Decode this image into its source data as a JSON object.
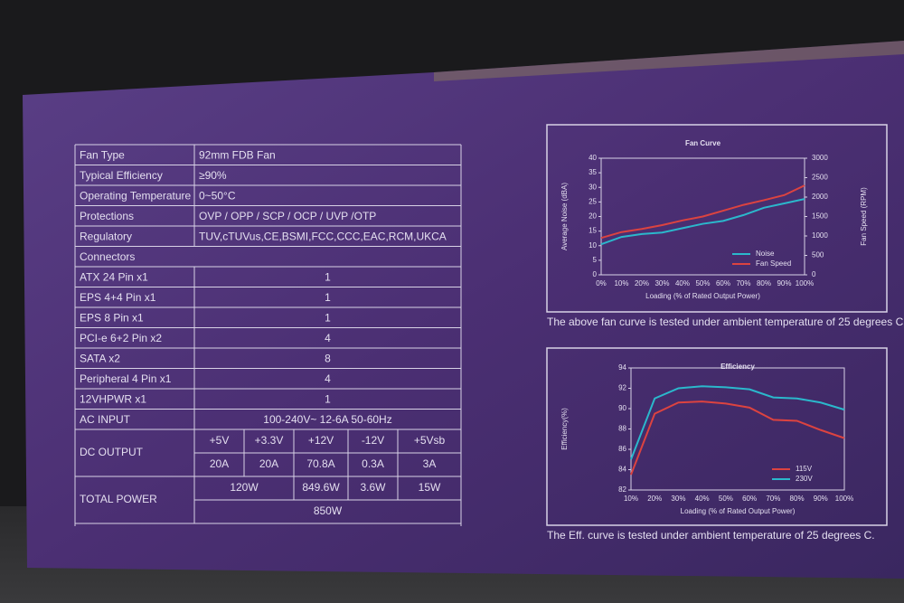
{
  "table": {
    "rows": [
      [
        "Fan Type",
        "92mm FDB Fan"
      ],
      [
        "Typical Efficiency",
        "≥90%"
      ],
      [
        "Operating Temperature",
        "0~50°C"
      ],
      [
        "Protections",
        "OVP / OPP / SCP / OCP / UVP /OTP"
      ],
      [
        "Regulatory",
        "TUV,cTUVus,CE,BSMI,FCC,CCC,EAC,RCM,UKCA"
      ],
      [
        "Connectors"
      ],
      [
        "ATX 24 Pin x1",
        "1"
      ],
      [
        "EPS 4+4 Pin x1",
        "1"
      ],
      [
        "EPS 8 Pin x1",
        "1"
      ],
      [
        "PCI-e 6+2 Pin x2",
        "4"
      ],
      [
        "SATA x2",
        "8"
      ],
      [
        "Peripheral 4 Pin x1",
        "4"
      ],
      [
        "12VHPWR x1",
        "1"
      ],
      [
        "AC INPUT",
        "100-240V~ 12-6A 50-60Hz"
      ]
    ],
    "dc_output": {
      "label": "DC OUTPUT",
      "rails": [
        "+5V",
        "+3.3V",
        "+12V",
        "-12V",
        "+5Vsb"
      ],
      "currents": [
        "20A",
        "20A",
        "70.8A",
        "0.3A",
        "3A"
      ]
    },
    "total_power": {
      "label": "TOTAL POWER",
      "values": [
        "120W",
        "849.6W",
        "3.6W",
        "15W"
      ],
      "total": "850W"
    }
  },
  "chart_data": [
    {
      "type": "line",
      "title": "Fan Curve",
      "x_label": "Loading (% of Rated Output Power)",
      "y_label": "Average Noise (dBA)",
      "y2_label": "Fan Speed (RPM)",
      "categories": [
        "0%",
        "10%",
        "20%",
        "30%",
        "40%",
        "50%",
        "60%",
        "70%",
        "80%",
        "90%",
        "100%"
      ],
      "ylim": [
        0,
        40
      ],
      "yticks": [
        0,
        5,
        10,
        15,
        20,
        25,
        30,
        35,
        40
      ],
      "y2lim": [
        0,
        3000
      ],
      "y2ticks": [
        0,
        500,
        1000,
        1500,
        2000,
        2500,
        3000
      ],
      "legend": "lower right",
      "series": [
        {
          "name": "Noise",
          "color": "#2bb8cc",
          "values": [
            10.5,
            13,
            14,
            14.5,
            16,
            17.5,
            18.5,
            20.5,
            23,
            24.5,
            26
          ]
        },
        {
          "name": "Fan Speed",
          "color": "#dc4340",
          "axis": "y2",
          "values": [
            950,
            1100,
            1180,
            1280,
            1400,
            1500,
            1650,
            1800,
            1920,
            2050,
            2300
          ]
        }
      ],
      "annotation": "The above fan curve is tested under ambient temperature of 25 degrees C."
    },
    {
      "type": "line",
      "title": "Efficiency",
      "x_label": "Loading (% of Rated Output Power)",
      "y_label": "Efficiency(%)",
      "categories": [
        "10%",
        "20%",
        "30%",
        "40%",
        "50%",
        "60%",
        "70%",
        "80%",
        "90%",
        "100%"
      ],
      "ylim": [
        82,
        94
      ],
      "yticks": [
        82,
        84,
        86,
        88,
        90,
        92,
        94
      ],
      "legend": "lower right",
      "series": [
        {
          "name": "115V",
          "color": "#dc4340",
          "values": [
            83.5,
            89.5,
            90.6,
            90.7,
            90.5,
            90.1,
            88.9,
            88.8,
            87.9,
            87.1
          ]
        },
        {
          "name": "230V",
          "color": "#2bb8cc",
          "values": [
            85,
            91,
            92,
            92.2,
            92.1,
            91.9,
            91.1,
            91.0,
            90.6,
            89.9
          ]
        }
      ],
      "annotation": "The Eff. curve is tested under ambient temperature of 25 degrees C."
    }
  ]
}
